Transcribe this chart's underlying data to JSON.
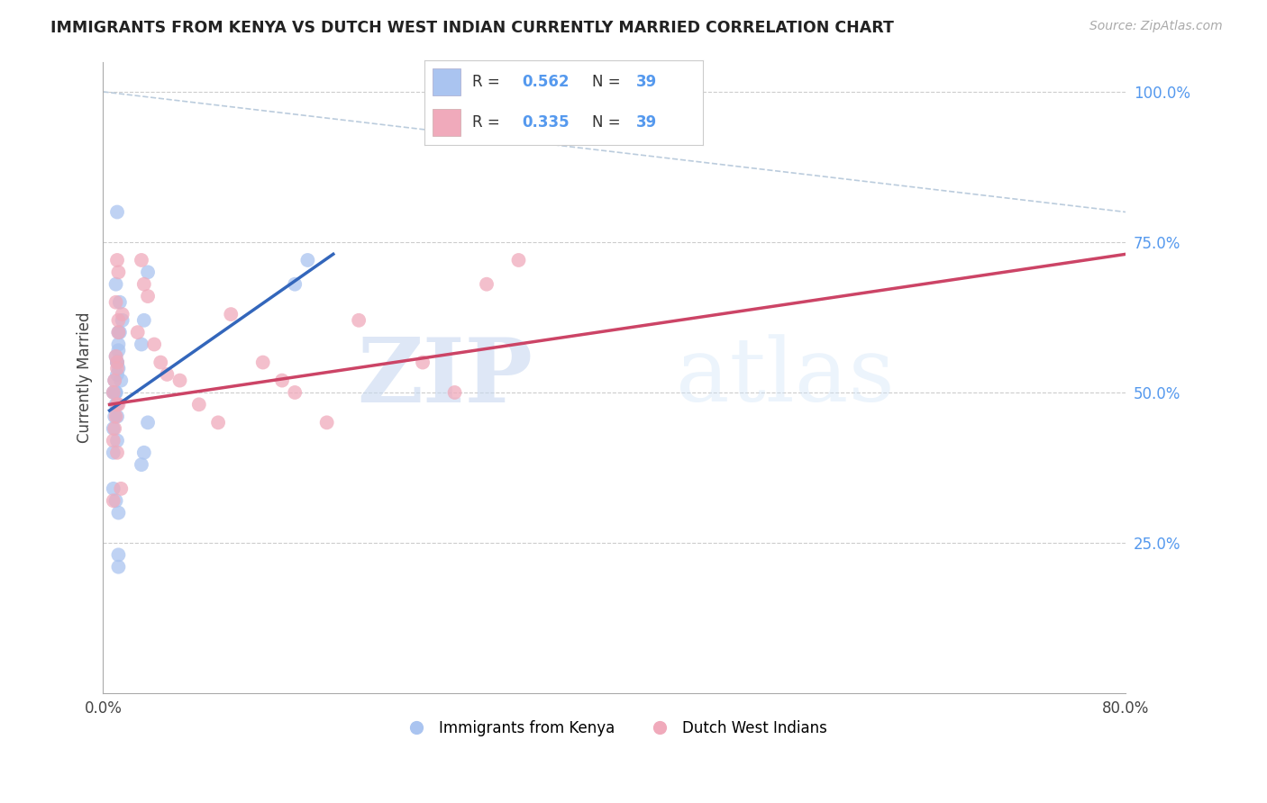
{
  "title": "IMMIGRANTS FROM KENYA VS DUTCH WEST INDIAN CURRENTLY MARRIED CORRELATION CHART",
  "source": "Source: ZipAtlas.com",
  "ylabel": "Currently Married",
  "xlim": [
    0.0,
    0.8
  ],
  "ylim": [
    0.0,
    1.05
  ],
  "xticks": [
    0.0,
    0.2,
    0.4,
    0.6,
    0.8
  ],
  "xticklabels": [
    "0.0%",
    "",
    "",
    "",
    "80.0%"
  ],
  "ytick_positions": [
    0.25,
    0.5,
    0.75,
    1.0
  ],
  "ytick_labels": [
    "25.0%",
    "50.0%",
    "75.0%",
    "100.0%"
  ],
  "grid_color": "#cccccc",
  "background_color": "#ffffff",
  "watermark_zip": "ZIP",
  "watermark_atlas": "atlas",
  "legend_r1": "R = 0.562",
  "legend_n1": "N = 39",
  "legend_r2": "R = 0.335",
  "legend_n2": "N = 39",
  "legend_label1": "Immigrants from Kenya",
  "legend_label2": "Dutch West Indians",
  "blue_color": "#aac4f0",
  "pink_color": "#f0aabb",
  "blue_line_color": "#3366bb",
  "pink_line_color": "#cc4466",
  "diag_color": "#bbccdd",
  "title_color": "#222222",
  "right_label_color": "#5599ee",
  "kenya_x": [
    0.01,
    0.013,
    0.011,
    0.009,
    0.008,
    0.01,
    0.012,
    0.011,
    0.015,
    0.012,
    0.01,
    0.011,
    0.009,
    0.008,
    0.011,
    0.012,
    0.01,
    0.011,
    0.014,
    0.008,
    0.03,
    0.032,
    0.013,
    0.01,
    0.012,
    0.011,
    0.009,
    0.035,
    0.15,
    0.16,
    0.008,
    0.01,
    0.012,
    0.035,
    0.032,
    0.03,
    0.012,
    0.012,
    0.011
  ],
  "kenya_y": [
    0.56,
    0.6,
    0.55,
    0.52,
    0.5,
    0.48,
    0.57,
    0.53,
    0.62,
    0.58,
    0.5,
    0.48,
    0.46,
    0.44,
    0.42,
    0.54,
    0.5,
    0.46,
    0.52,
    0.4,
    0.58,
    0.62,
    0.65,
    0.68,
    0.6,
    0.55,
    0.5,
    0.7,
    0.68,
    0.72,
    0.34,
    0.32,
    0.3,
    0.45,
    0.4,
    0.38,
    0.23,
    0.21,
    0.8
  ],
  "dutch_x": [
    0.01,
    0.012,
    0.011,
    0.009,
    0.008,
    0.01,
    0.012,
    0.011,
    0.015,
    0.012,
    0.03,
    0.032,
    0.035,
    0.027,
    0.04,
    0.045,
    0.05,
    0.06,
    0.075,
    0.09,
    0.1,
    0.125,
    0.14,
    0.15,
    0.175,
    0.2,
    0.25,
    0.275,
    0.3,
    0.325,
    0.011,
    0.009,
    0.008,
    0.011,
    0.012,
    0.01,
    0.011,
    0.014,
    0.008
  ],
  "dutch_y": [
    0.56,
    0.6,
    0.55,
    0.52,
    0.5,
    0.65,
    0.7,
    0.72,
    0.63,
    0.62,
    0.72,
    0.68,
    0.66,
    0.6,
    0.58,
    0.55,
    0.53,
    0.52,
    0.48,
    0.45,
    0.63,
    0.55,
    0.52,
    0.5,
    0.45,
    0.62,
    0.55,
    0.5,
    0.68,
    0.72,
    0.48,
    0.44,
    0.42,
    0.54,
    0.48,
    0.46,
    0.4,
    0.34,
    0.32
  ],
  "blue_line_x": [
    0.005,
    0.18
  ],
  "blue_line_y": [
    0.47,
    0.73
  ],
  "pink_line_x": [
    0.005,
    0.8
  ],
  "pink_line_y": [
    0.48,
    0.73
  ]
}
